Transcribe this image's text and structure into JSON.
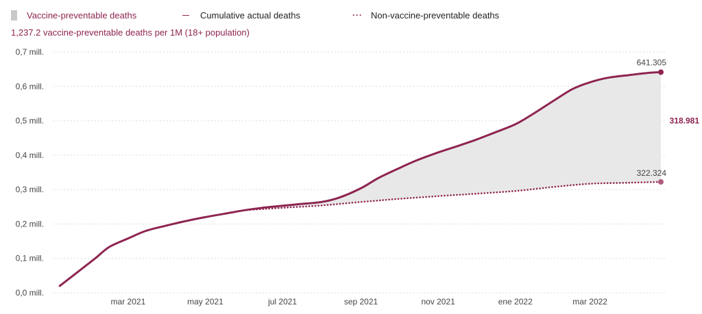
{
  "legend": {
    "area_label": "Vaccine-preventable deaths",
    "actual_label": "Cumulative actual deaths",
    "nonvacc_label": "Non-vaccine-preventable deaths"
  },
  "subtitle": "1,237.2 vaccine-preventable deaths per 1M (18+ population)",
  "colors": {
    "accent": "#8e2450",
    "area": "#e8e8e8",
    "grid": "#cfcfcf"
  },
  "chart_data": {
    "type": "line",
    "x_tick_labels": [
      "mar 2021",
      "may 2021",
      "jul 2021",
      "sep 2021",
      "nov 2021",
      "ene 2022",
      "mar 2022"
    ],
    "y_tick_labels": [
      "0,0 mill.",
      "0,1 mill.",
      "0,2 mill.",
      "0,3 mill.",
      "0,4 mill.",
      "0,5 mill.",
      "0,6 mill.",
      "0,7 mill."
    ],
    "ylim": [
      0,
      700000
    ],
    "xlim": [
      "2021-01-01",
      "2022-04-26"
    ],
    "series": [
      {
        "name": "Cumulative actual deaths",
        "style": "solid",
        "points": [
          [
            "2021-01-06",
            20000
          ],
          [
            "2021-01-20",
            60000
          ],
          [
            "2021-02-03",
            100000
          ],
          [
            "2021-02-14",
            133000
          ],
          [
            "2021-03-01",
            158000
          ],
          [
            "2021-03-15",
            180000
          ],
          [
            "2021-04-01",
            196000
          ],
          [
            "2021-04-15",
            208000
          ],
          [
            "2021-05-01",
            220000
          ],
          [
            "2021-05-15",
            229000
          ],
          [
            "2021-06-01",
            240000
          ],
          [
            "2021-06-15",
            247000
          ],
          [
            "2021-07-01",
            253000
          ],
          [
            "2021-07-15",
            258000
          ],
          [
            "2021-08-01",
            264000
          ],
          [
            "2021-08-15",
            277000
          ],
          [
            "2021-09-01",
            304000
          ],
          [
            "2021-09-15",
            334000
          ],
          [
            "2021-10-01",
            362000
          ],
          [
            "2021-10-15",
            385000
          ],
          [
            "2021-11-01",
            408000
          ],
          [
            "2021-11-15",
            425000
          ],
          [
            "2021-12-01",
            445000
          ],
          [
            "2021-12-15",
            465000
          ],
          [
            "2022-01-01",
            490000
          ],
          [
            "2022-01-15",
            520000
          ],
          [
            "2022-02-01",
            560000
          ],
          [
            "2022-02-15",
            592000
          ],
          [
            "2022-03-01",
            612000
          ],
          [
            "2022-03-15",
            625000
          ],
          [
            "2022-04-01",
            633000
          ],
          [
            "2022-04-15",
            639000
          ],
          [
            "2022-04-26",
            641305
          ]
        ]
      },
      {
        "name": "Non-vaccine-preventable deaths",
        "style": "dotted",
        "points": [
          [
            "2021-06-01",
            240000
          ],
          [
            "2021-07-01",
            247000
          ],
          [
            "2021-08-01",
            254000
          ],
          [
            "2021-09-01",
            264000
          ],
          [
            "2021-10-01",
            273000
          ],
          [
            "2021-11-01",
            281000
          ],
          [
            "2021-12-01",
            288000
          ],
          [
            "2022-01-01",
            296000
          ],
          [
            "2022-02-01",
            308000
          ],
          [
            "2022-03-01",
            317000
          ],
          [
            "2022-04-01",
            320000
          ],
          [
            "2022-04-26",
            322324
          ]
        ]
      }
    ],
    "end_labels": {
      "actual": "641.305",
      "nonvacc": "322.324",
      "difference": "318.981"
    },
    "grid": true,
    "legend_position": "top-left"
  }
}
